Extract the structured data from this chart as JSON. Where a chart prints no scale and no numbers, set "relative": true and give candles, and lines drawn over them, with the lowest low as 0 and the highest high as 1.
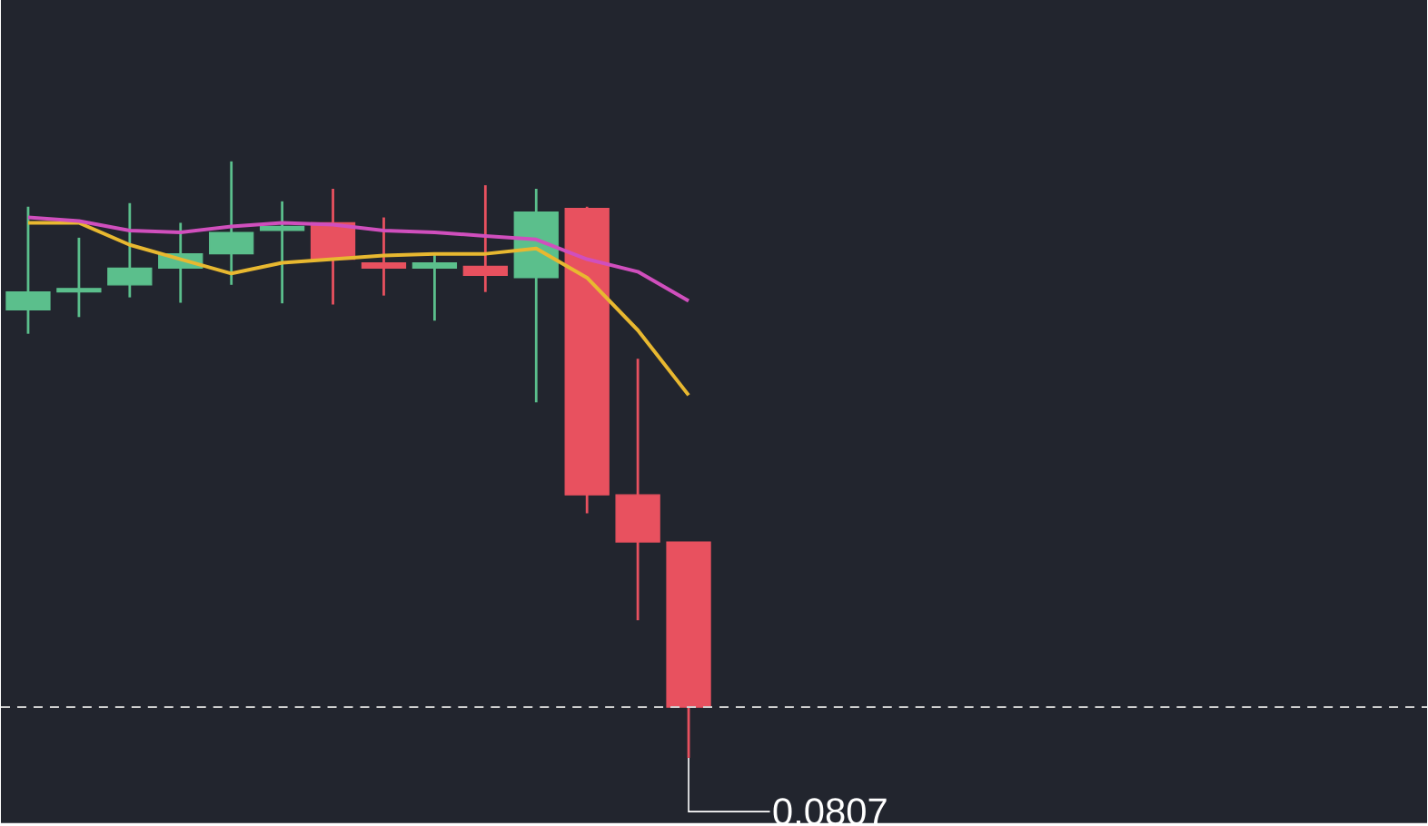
{
  "chart_data": {
    "type": "candlestick",
    "relative": true,
    "categories": [
      null,
      null,
      null,
      null,
      null,
      null,
      null,
      null,
      null,
      null,
      null,
      null,
      null,
      null
    ],
    "ohlc": [
      [
        0.751,
        0.924,
        0.711,
        0.781
      ],
      [
        0.781,
        0.872,
        0.739,
        0.787
      ],
      [
        0.793,
        0.93,
        0.772,
        0.821
      ],
      [
        0.821,
        0.897,
        0.763,
        0.845
      ],
      [
        0.845,
        1.0,
        0.793,
        0.881
      ],
      [
        0.884,
        0.933,
        0.762,
        0.891
      ],
      [
        0.897,
        0.954,
        0.76,
        0.836
      ],
      [
        0.83,
        0.906,
        0.775,
        0.821
      ],
      [
        0.821,
        0.845,
        0.733,
        0.83
      ],
      [
        0.824,
        0.96,
        0.781,
        0.809
      ],
      [
        0.805,
        0.954,
        0.596,
        0.915
      ],
      [
        0.921,
        0.924,
        0.41,
        0.441
      ],
      [
        0.441,
        0.669,
        0.231,
        0.362
      ],
      [
        0.362,
        0.362,
        0.0,
        0.085
      ]
    ],
    "colors": [
      "#5bbf8c",
      "#5bbf8c",
      "#5bbf8c",
      "#5bbf8c",
      "#5bbf8c",
      "#5bbf8c",
      "#e8515f",
      "#e8515f",
      "#5bbf8c",
      "#e8515f",
      "#5bbf8c",
      "#e8515f",
      "#e8515f",
      "#e8515f"
    ],
    "series": [
      {
        "type": "line",
        "color": "#e8b830",
        "values": [
          0.897,
          0.897,
          0.86,
          0.836,
          0.812,
          0.83,
          0.836,
          0.842,
          0.845,
          0.845,
          0.854,
          0.805,
          0.717,
          0.608
        ]
      },
      {
        "type": "line",
        "color": "#d04fbd",
        "values": [
          0.906,
          0.9,
          0.884,
          0.881,
          0.891,
          0.897,
          0.894,
          0.884,
          0.881,
          0.875,
          0.869,
          0.836,
          0.815,
          0.766
        ]
      }
    ],
    "ref_lines": [
      {
        "axis": "y",
        "value": 0.085,
        "color": "#d0d0d0",
        "line_style": "dashed"
      }
    ],
    "annotations": [
      "0.0807"
    ]
  }
}
